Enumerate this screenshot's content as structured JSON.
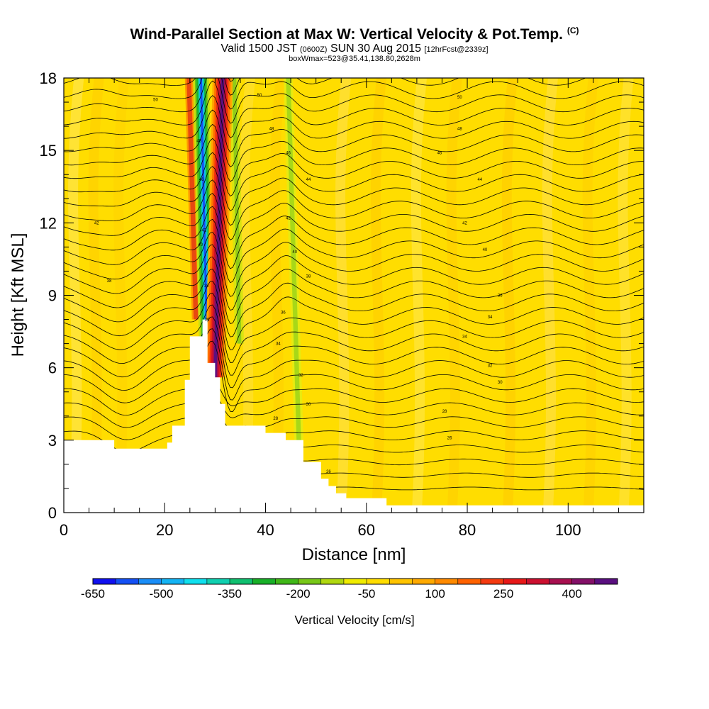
{
  "header": {
    "title": "Wind-Parallel Section at Max W: Vertical Velocity & Pot.Temp.",
    "copyright": "(C)",
    "valid_prefix": "Valid 1500 JST",
    "valid_utc": "(0600Z)",
    "valid_date": "SUN 30 Aug 2015",
    "forecast": "[12hrFcst@2339z]",
    "box_info": "boxWmax=523@35.41,138.80,2628m"
  },
  "chart_data": {
    "type": "heatmap",
    "xlabel": "Distance [nm]",
    "ylabel": "Height [Kft MSL]",
    "xlim": [
      0,
      115
    ],
    "ylim": [
      0,
      18
    ],
    "x_ticks": [
      0,
      20,
      40,
      60,
      80,
      100
    ],
    "y_ticks": [
      0,
      3,
      6,
      9,
      12,
      15,
      18
    ],
    "background_color": "#ffdd00",
    "terrain_profile": [
      [
        0,
        3.0
      ],
      [
        10,
        3.0
      ],
      [
        10,
        2.65
      ],
      [
        20.5,
        2.65
      ],
      [
        20.5,
        2.9
      ],
      [
        21.5,
        2.9
      ],
      [
        21.5,
        3.6
      ],
      [
        24,
        3.6
      ],
      [
        24,
        5.5
      ],
      [
        25,
        5.5
      ],
      [
        25,
        7.3
      ],
      [
        27.5,
        7.3
      ],
      [
        27.5,
        8.0
      ],
      [
        28.5,
        8.0
      ],
      [
        28.5,
        6.2
      ],
      [
        30,
        6.2
      ],
      [
        30,
        5.6
      ],
      [
        31,
        5.6
      ],
      [
        31,
        4.5
      ],
      [
        32,
        4.5
      ],
      [
        32,
        3.6
      ],
      [
        40,
        3.6
      ],
      [
        40,
        3.3
      ],
      [
        44,
        3.3
      ],
      [
        44,
        3.0
      ],
      [
        47.5,
        3.0
      ],
      [
        47.5,
        2.1
      ],
      [
        51,
        2.1
      ],
      [
        51,
        1.4
      ],
      [
        52.5,
        1.4
      ],
      [
        52.5,
        1.1
      ],
      [
        54,
        1.1
      ],
      [
        54,
        0.8
      ],
      [
        56,
        0.8
      ],
      [
        56,
        0.6
      ],
      [
        64,
        0.6
      ],
      [
        64,
        0.3
      ],
      [
        115,
        0.3
      ]
    ],
    "updraft_band": {
      "bottom_x": 30,
      "top_x": 31.5,
      "peak_cm_s": 523
    },
    "downdraft_band": {
      "bottom_x": 28.4,
      "top_x": 27.2
    },
    "theta_contours_K": [
      {
        "x": 18.2,
        "y": 17.1,
        "label": "50"
      },
      {
        "x": 38.8,
        "y": 17.3,
        "label": "50"
      },
      {
        "x": 78.5,
        "y": 17.2,
        "label": "50"
      },
      {
        "x": 41.2,
        "y": 15.9,
        "label": "48"
      },
      {
        "x": 78.5,
        "y": 15.9,
        "label": "48"
      },
      {
        "x": 26.8,
        "y": 15.4,
        "label": "48"
      },
      {
        "x": 44.5,
        "y": 14.9,
        "label": "46"
      },
      {
        "x": 74.5,
        "y": 14.9,
        "label": "46"
      },
      {
        "x": 27.3,
        "y": 13.8,
        "label": "46"
      },
      {
        "x": 48.5,
        "y": 13.8,
        "label": "44"
      },
      {
        "x": 82.5,
        "y": 13.8,
        "label": "44"
      },
      {
        "x": 6.5,
        "y": 12.0,
        "label": "42"
      },
      {
        "x": 44.5,
        "y": 12.2,
        "label": "42"
      },
      {
        "x": 79.5,
        "y": 12.0,
        "label": "42"
      },
      {
        "x": 27.8,
        "y": 11.7,
        "label": "42"
      },
      {
        "x": 27.1,
        "y": 11.1,
        "label": "40"
      },
      {
        "x": 45.8,
        "y": 10.8,
        "label": "40"
      },
      {
        "x": 83.5,
        "y": 10.9,
        "label": "40"
      },
      {
        "x": 9.0,
        "y": 9.6,
        "label": "38"
      },
      {
        "x": 48.5,
        "y": 9.8,
        "label": "38"
      },
      {
        "x": 86.5,
        "y": 9.0,
        "label": "36"
      },
      {
        "x": 28.3,
        "y": 9.4,
        "label": "38"
      },
      {
        "x": 43.5,
        "y": 8.3,
        "label": "36"
      },
      {
        "x": 84.5,
        "y": 8.1,
        "label": "34"
      },
      {
        "x": 42.5,
        "y": 7.0,
        "label": "34"
      },
      {
        "x": 79.5,
        "y": 7.3,
        "label": "34"
      },
      {
        "x": 28.4,
        "y": 8.0,
        "label": "36"
      },
      {
        "x": 84.5,
        "y": 6.1,
        "label": "32"
      },
      {
        "x": 47.0,
        "y": 5.7,
        "label": "32"
      },
      {
        "x": 86.5,
        "y": 5.4,
        "label": "30"
      },
      {
        "x": 48.5,
        "y": 4.5,
        "label": "30"
      },
      {
        "x": 75.5,
        "y": 4.2,
        "label": "28"
      },
      {
        "x": 42.0,
        "y": 3.9,
        "label": "28"
      },
      {
        "x": 76.5,
        "y": 3.1,
        "label": "26"
      },
      {
        "x": 52.5,
        "y": 1.7,
        "label": "26"
      }
    ]
  },
  "colorbar": {
    "title": "Vertical Velocity [cm/s]",
    "labels": [
      "-650",
      "-500",
      "-350",
      "-200",
      "-50",
      "100",
      "250",
      "400"
    ],
    "colors": [
      "#1010f0",
      "#1450f5",
      "#1a8ef8",
      "#14b4f4",
      "#10e0ee",
      "#10d0b0",
      "#10c070",
      "#18b028",
      "#40b818",
      "#78c818",
      "#b0d810",
      "#f0ec00",
      "#ffdd00",
      "#ffc400",
      "#ffaa00",
      "#ff8a00",
      "#ff6200",
      "#f53a10",
      "#e81818",
      "#cc1030",
      "#a81050",
      "#841068",
      "#5a0f80"
    ]
  }
}
